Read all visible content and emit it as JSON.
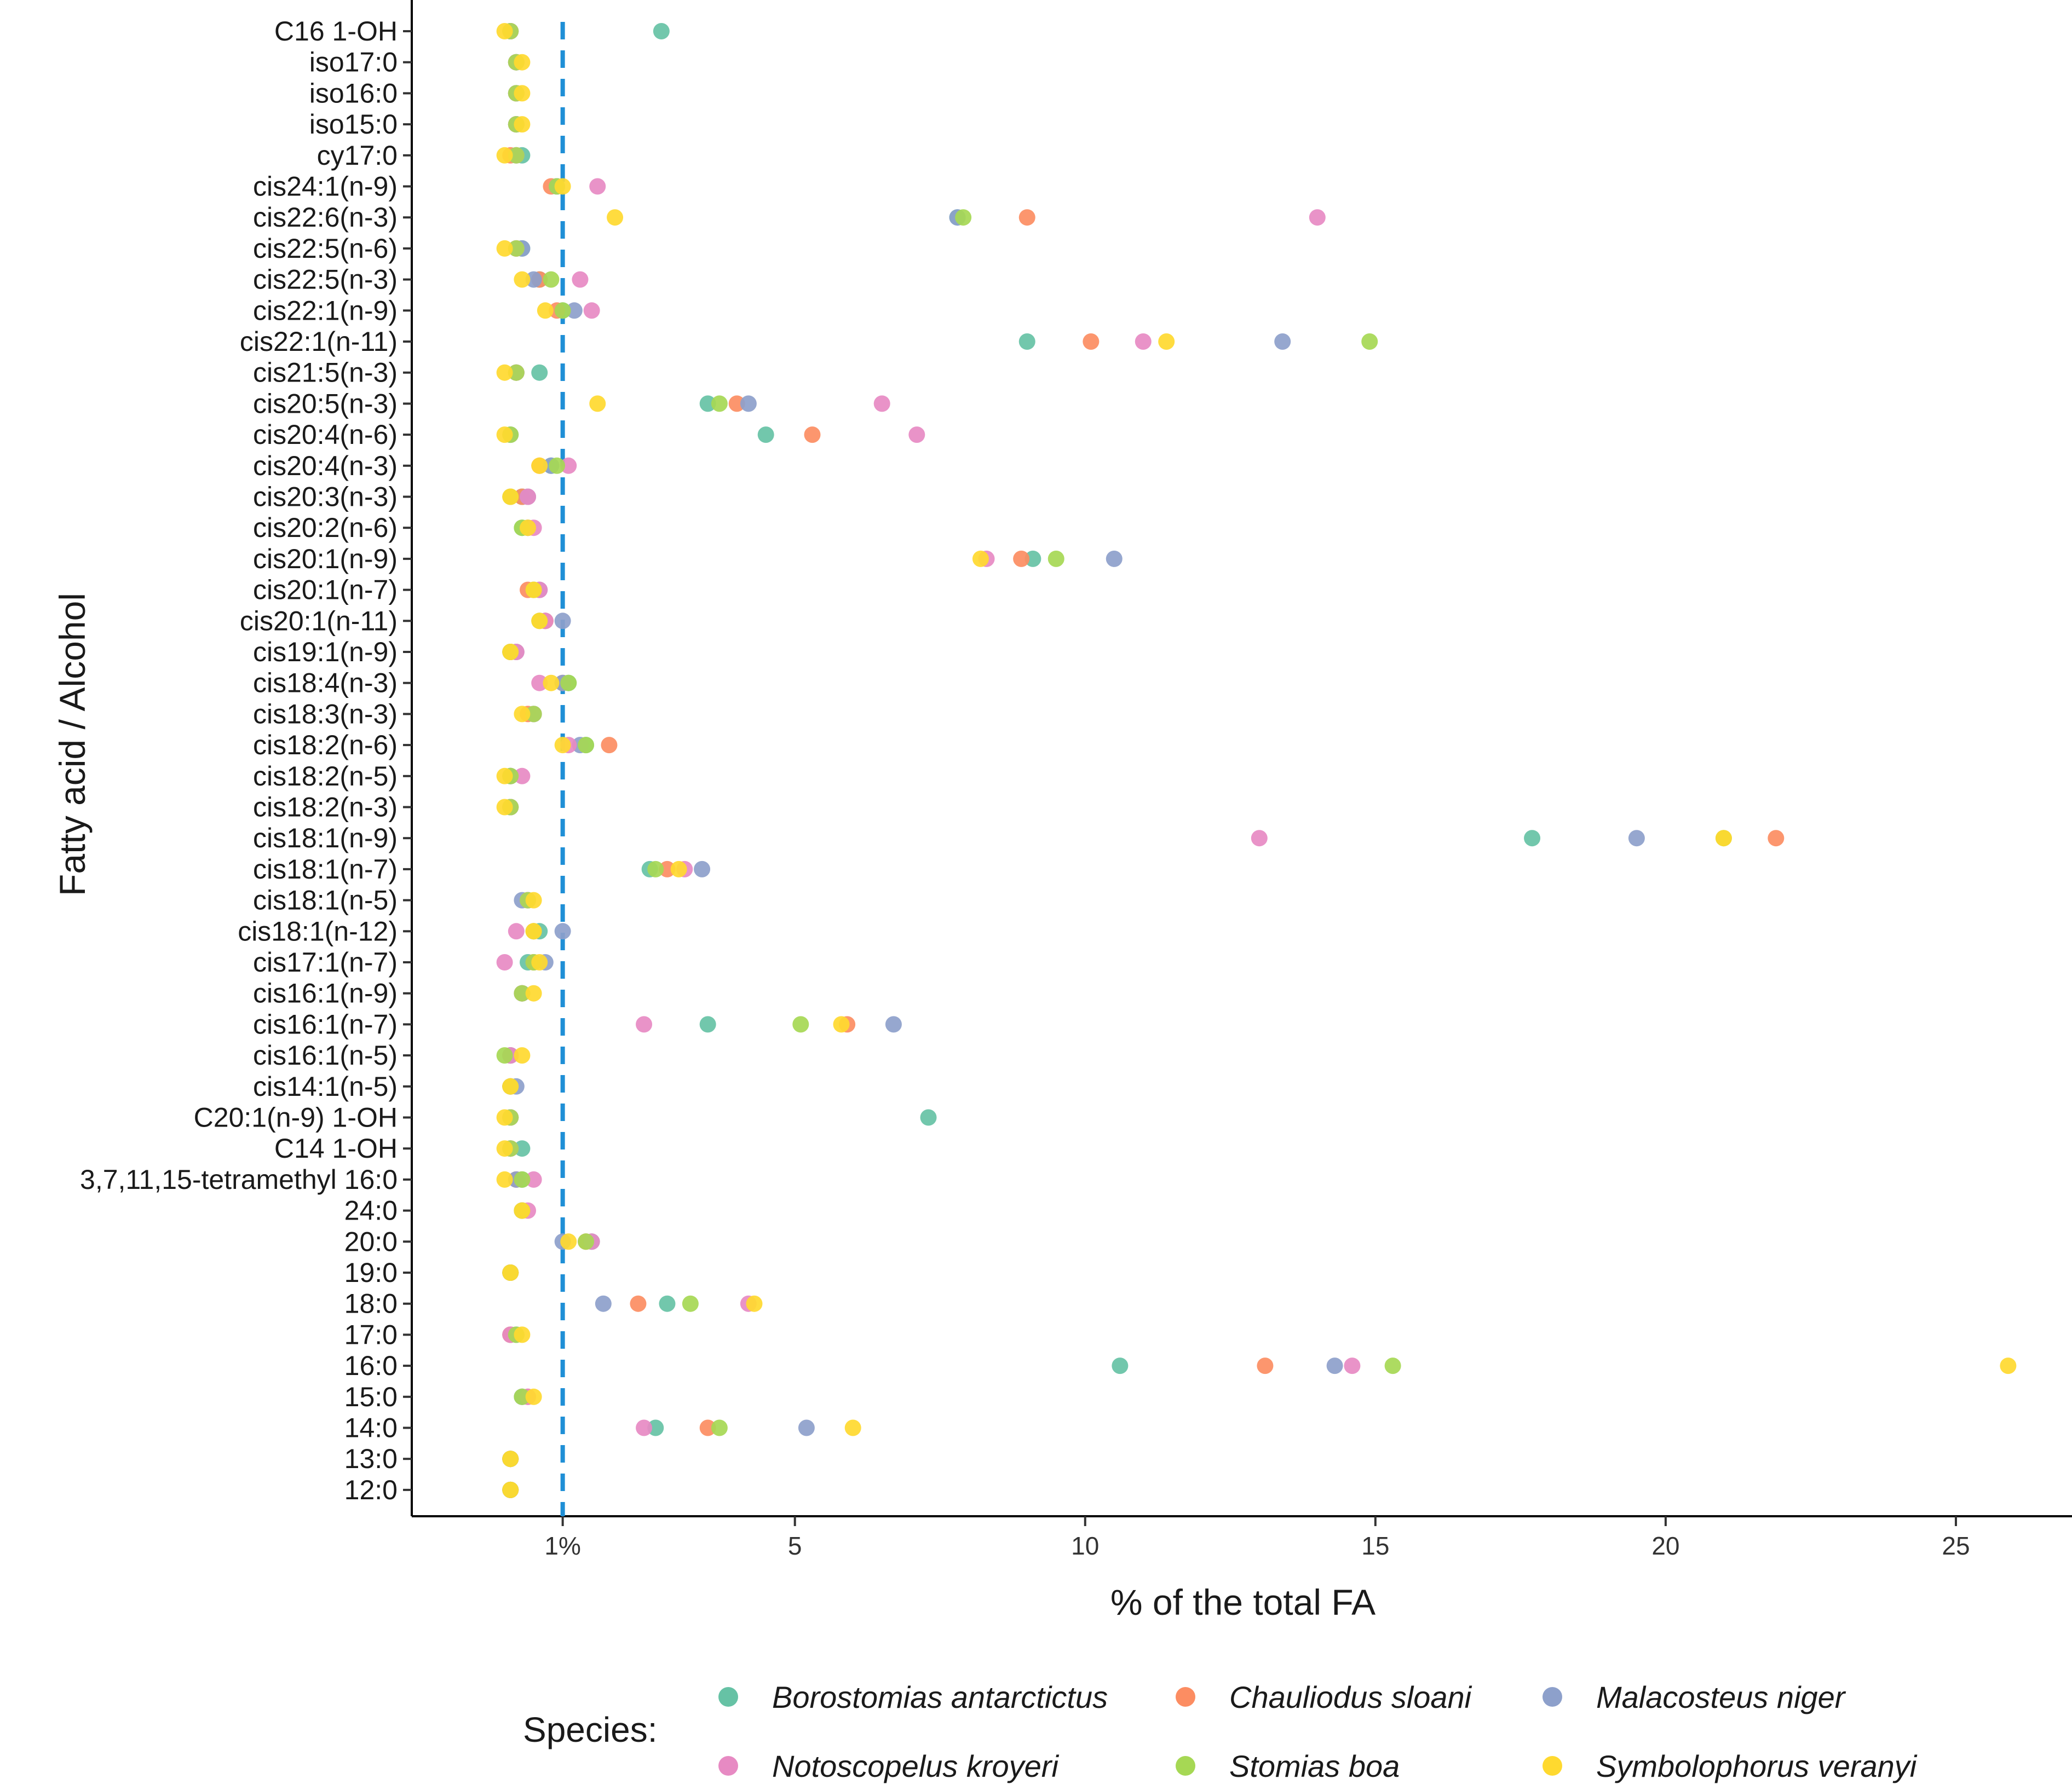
{
  "chart_data": {
    "type": "scatter",
    "xlabel": "% of the total FA",
    "ylabel": "Fatty acid / Alcohol",
    "xlim": [
      -1.6,
      27.0
    ],
    "x_ticks": [
      {
        "value": 1,
        "label": "1%"
      },
      {
        "value": 5,
        "label": "5"
      },
      {
        "value": 10,
        "label": "10"
      },
      {
        "value": 15,
        "label": "15"
      },
      {
        "value": 20,
        "label": "20"
      },
      {
        "value": 25,
        "label": "25"
      }
    ],
    "reference_line": {
      "value": 1,
      "style": "dashed",
      "color": "#1f8fd6"
    },
    "grid": false,
    "legend_title": "Species:",
    "legend_position": "bottom",
    "categories": [
      "C16 1-OH",
      "iso17:0",
      "iso16:0",
      "iso15:0",
      "cy17:0",
      "cis24:1(n-9)",
      "cis22:6(n-3)",
      "cis22:5(n-6)",
      "cis22:5(n-3)",
      "cis22:1(n-9)",
      "cis22:1(n-11)",
      "cis21:5(n-3)",
      "cis20:5(n-3)",
      "cis20:4(n-6)",
      "cis20:4(n-3)",
      "cis20:3(n-3)",
      "cis20:2(n-6)",
      "cis20:1(n-9)",
      "cis20:1(n-7)",
      "cis20:1(n-11)",
      "cis19:1(n-9)",
      "cis18:4(n-3)",
      "cis18:3(n-3)",
      "cis18:2(n-6)",
      "cis18:2(n-5)",
      "cis18:2(n-3)",
      "cis18:1(n-9)",
      "cis18:1(n-7)",
      "cis18:1(n-5)",
      "cis18:1(n-12)",
      "cis17:1(n-7)",
      "cis16:1(n-9)",
      "cis16:1(n-7)",
      "cis16:1(n-5)",
      "cis14:1(n-5)",
      "C20:1(n-9) 1-OH",
      "C14 1-OH",
      "3,7,11,15-tetramethyl 16:0",
      "24:0",
      "20:0",
      "19:0",
      "18:0",
      "17:0",
      "16:0",
      "15:0",
      "14:0",
      "13:0",
      "12:0"
    ],
    "series": [
      {
        "name": "Borostomias antarctictus",
        "color": "#66c2a5",
        "values": [
          2.7,
          0.2,
          0.2,
          0.2,
          0.3,
          0.9,
          7.8,
          0.3,
          0.6,
          1.0,
          9.0,
          0.6,
          3.5,
          4.5,
          0.8,
          0.3,
          0.3,
          9.1,
          0.5,
          0.7,
          0.1,
          1.1,
          0.5,
          1.4,
          0.1,
          0.1,
          17.7,
          2.5,
          0.4,
          0.6,
          0.4,
          0.3,
          3.5,
          0.1,
          0.1,
          7.3,
          0.3,
          0.3,
          0.3,
          1.5,
          0.1,
          2.8,
          0.1,
          10.6,
          0.3,
          2.6,
          0.1,
          0.1
        ]
      },
      {
        "name": "Chauliodus sloani",
        "color": "#fc8d62",
        "values": [
          0.1,
          0.2,
          0.2,
          0.2,
          0.1,
          0.8,
          9.0,
          0.2,
          0.6,
          0.9,
          10.1,
          0.2,
          4.0,
          5.3,
          0.6,
          0.3,
          0.4,
          8.9,
          0.4,
          0.7,
          0.1,
          1.0,
          0.4,
          1.8,
          0.1,
          0.1,
          21.9,
          2.8,
          0.4,
          0.5,
          0.5,
          0.3,
          5.9,
          0.1,
          0.1,
          0.1,
          0.1,
          0.2,
          0.3,
          1.4,
          0.1,
          2.3,
          0.1,
          13.1,
          0.4,
          3.5,
          0.1,
          0.1
        ]
      },
      {
        "name": "Malacosteus niger",
        "color": "#8da0cb",
        "values": [
          0.1,
          0.2,
          0.2,
          0.2,
          0.2,
          0.9,
          7.8,
          0.3,
          0.5,
          1.2,
          13.4,
          0.2,
          4.2,
          0.1,
          0.8,
          0.4,
          0.4,
          10.5,
          0.6,
          1.0,
          0.2,
          1.0,
          0.5,
          1.3,
          0.1,
          0.1,
          19.5,
          3.4,
          0.3,
          1.0,
          0.7,
          0.3,
          6.7,
          0.1,
          0.2,
          0.1,
          0.1,
          0.2,
          0.3,
          1.0,
          0.1,
          1.7,
          0.2,
          14.3,
          0.3,
          5.2,
          0.1,
          0.1
        ]
      },
      {
        "name": "Notoscopelus kroyeri",
        "color": "#e78ac3",
        "values": [
          0.1,
          0.2,
          0.2,
          0.2,
          0.2,
          1.6,
          14.0,
          0.2,
          1.3,
          1.5,
          11.0,
          0.2,
          6.5,
          7.1,
          1.1,
          0.4,
          0.5,
          8.3,
          0.6,
          0.7,
          0.2,
          0.6,
          0.5,
          1.1,
          0.3,
          0.1,
          13.0,
          3.1,
          0.4,
          0.2,
          0.0,
          0.3,
          2.4,
          0.1,
          0.1,
          0.1,
          0.1,
          0.5,
          0.4,
          1.5,
          0.1,
          4.2,
          0.1,
          14.6,
          0.4,
          2.4,
          0.1,
          0.1
        ]
      },
      {
        "name": "Stomias boa",
        "color": "#a6d854",
        "values": [
          0.1,
          0.2,
          0.2,
          0.2,
          0.2,
          0.9,
          7.9,
          0.2,
          0.8,
          1.0,
          14.9,
          0.2,
          3.7,
          0.1,
          0.9,
          0.1,
          0.3,
          9.5,
          0.5,
          0.6,
          0.1,
          1.1,
          0.5,
          1.4,
          0.1,
          0.1,
          21.0,
          2.6,
          0.4,
          0.5,
          0.5,
          0.3,
          5.1,
          0.0,
          0.1,
          0.1,
          0.1,
          0.3,
          0.3,
          1.4,
          0.1,
          3.2,
          0.2,
          15.3,
          0.3,
          3.7,
          0.1,
          0.1
        ]
      },
      {
        "name": "Symbolophorus veranyi",
        "color": "#ffd92f",
        "values": [
          0.0,
          0.3,
          0.3,
          0.3,
          0.0,
          1.0,
          1.9,
          0.0,
          0.3,
          0.7,
          11.4,
          0.0,
          1.6,
          0.0,
          0.6,
          0.1,
          0.4,
          8.2,
          0.5,
          0.6,
          0.1,
          0.8,
          0.3,
          1.0,
          0.0,
          0.0,
          21.0,
          3.0,
          0.5,
          0.5,
          0.6,
          0.5,
          5.8,
          0.3,
          0.1,
          0.0,
          0.0,
          0.0,
          0.3,
          1.1,
          0.1,
          4.3,
          0.3,
          25.9,
          0.5,
          6.0,
          0.1,
          0.1
        ]
      }
    ]
  }
}
